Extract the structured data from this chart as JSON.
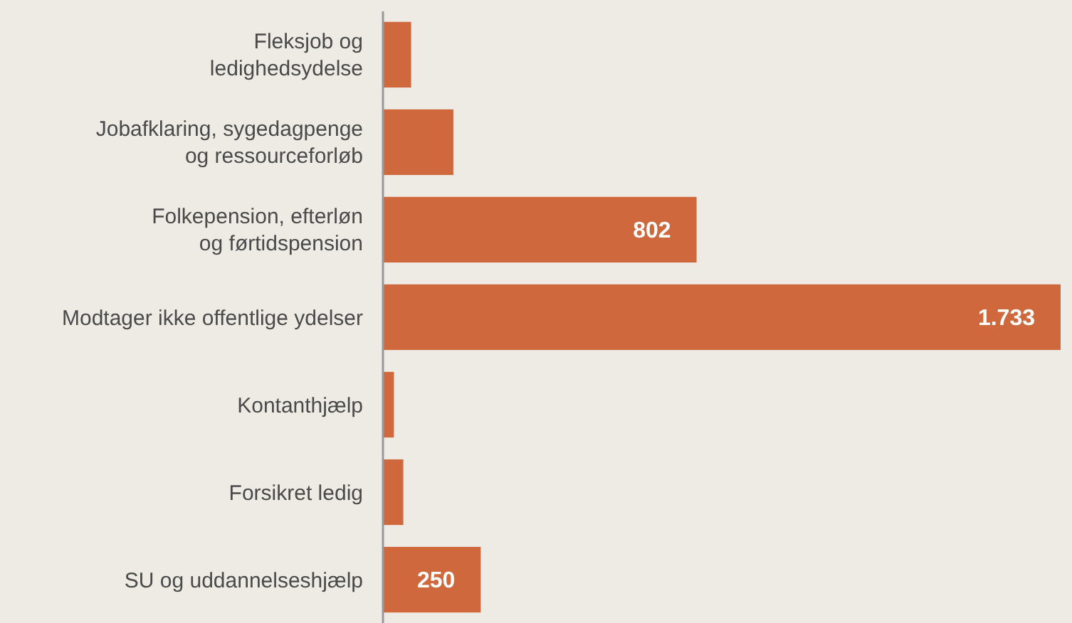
{
  "chart_data": {
    "type": "bar",
    "orientation": "horizontal",
    "categories": [
      "Fleksjob og\nledighedsydelse",
      "Jobafklaring, sygedagpenge\nog ressourceforløb",
      "Folkepension, efterløn\nog førtidspension",
      "Modtager ikke offentlige ydelser",
      "Kontanthjælp",
      "Forsikret ledig",
      "SU og uddannelseshjælp"
    ],
    "values": [
      72,
      180,
      802,
      1733,
      28,
      52,
      250
    ],
    "value_labels": [
      null,
      null,
      "802",
      "1.733",
      null,
      null,
      "250"
    ],
    "color": "#cf683d"
  }
}
